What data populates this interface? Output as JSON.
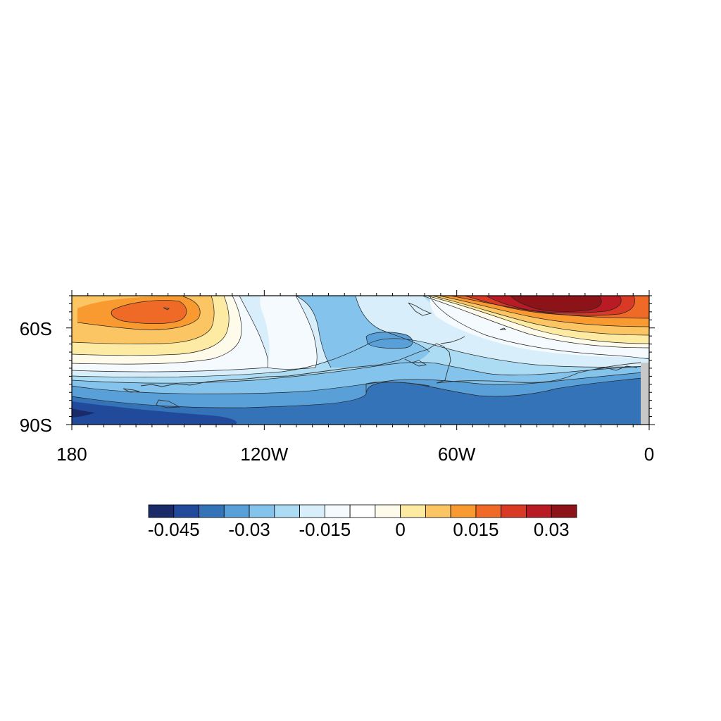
{
  "map": {
    "region": "Southern Hemisphere sector, 180 to 0 longitude, high southern latitudes",
    "x_tick_labels": [
      "180",
      "120W",
      "60W",
      "0"
    ],
    "y_tick_labels": [
      "60S",
      "90S"
    ],
    "x_ticks_deg": [
      -180,
      -120,
      -60,
      0
    ],
    "y_ticks_deg": [
      -60,
      -90
    ],
    "lon_range": [
      -180,
      0
    ],
    "lat_range": [
      -90,
      -50
    ],
    "coastlines": true,
    "contour_lines": true,
    "missing_color": "#c8c8c8"
  },
  "colorbar": {
    "orientation": "horizontal",
    "placement": "bottom",
    "levels": [
      -0.045,
      -0.04,
      -0.035,
      -0.03,
      -0.025,
      -0.02,
      -0.015,
      -0.01,
      -0.005,
      0,
      0.005,
      0.01,
      0.015,
      0.02,
      0.025,
      0.03
    ],
    "label_levels": [
      -0.045,
      -0.03,
      -0.015,
      0,
      0.015,
      0.03
    ],
    "labels": [
      "-0.045",
      "-0.03",
      "-0.015",
      "0",
      "0.015",
      "0.03"
    ],
    "colors": [
      "#1a2a68",
      "#224a9a",
      "#3573b9",
      "#59a0d8",
      "#84c4ec",
      "#acdcf4",
      "#d8eefa",
      "#f4fafe",
      "#ffffff",
      "#fffbea",
      "#fdeba4",
      "#fbc563",
      "#f99a30",
      "#ef6a26",
      "#d93a26",
      "#b81b23",
      "#8c1419"
    ]
  }
}
